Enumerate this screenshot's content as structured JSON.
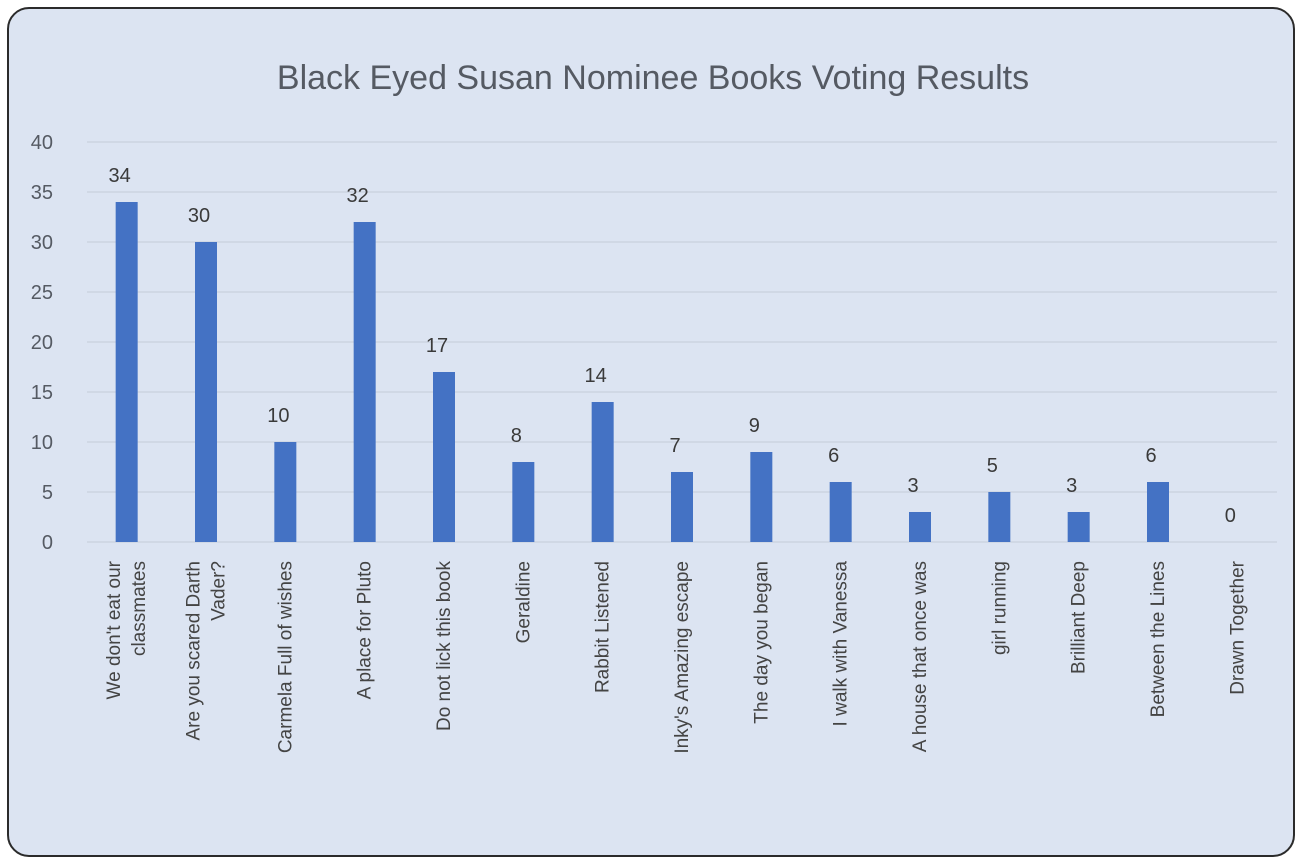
{
  "chart_data": {
    "type": "bar",
    "title": "Black Eyed Susan Nominee Books Voting Results",
    "xlabel": "",
    "ylabel": "",
    "ylim": [
      0,
      40
    ],
    "yticks": [
      0,
      5,
      10,
      15,
      20,
      25,
      30,
      35,
      40
    ],
    "grid": true,
    "legend": "none",
    "bar_color": "#4472c4",
    "background_color": "#dce4f2",
    "categories": [
      [
        "We don't eat our",
        "classmates"
      ],
      [
        "Are you scared Darth",
        "Vader?"
      ],
      [
        "Carmela Full of wishes"
      ],
      [
        "A place for Pluto"
      ],
      [
        "Do not lick this book"
      ],
      [
        "Geraldine"
      ],
      [
        "Rabbit Listened"
      ],
      [
        "Inky's Amazing escape"
      ],
      [
        "The day you began"
      ],
      [
        "I walk with Vanessa"
      ],
      [
        "A house that once was"
      ],
      [
        "girl running"
      ],
      [
        "Brilliant Deep"
      ],
      [
        "Between the Lines"
      ],
      [
        "Drawn Together"
      ]
    ],
    "values": [
      34,
      30,
      10,
      32,
      17,
      8,
      14,
      7,
      9,
      6,
      3,
      5,
      3,
      6,
      0
    ]
  }
}
